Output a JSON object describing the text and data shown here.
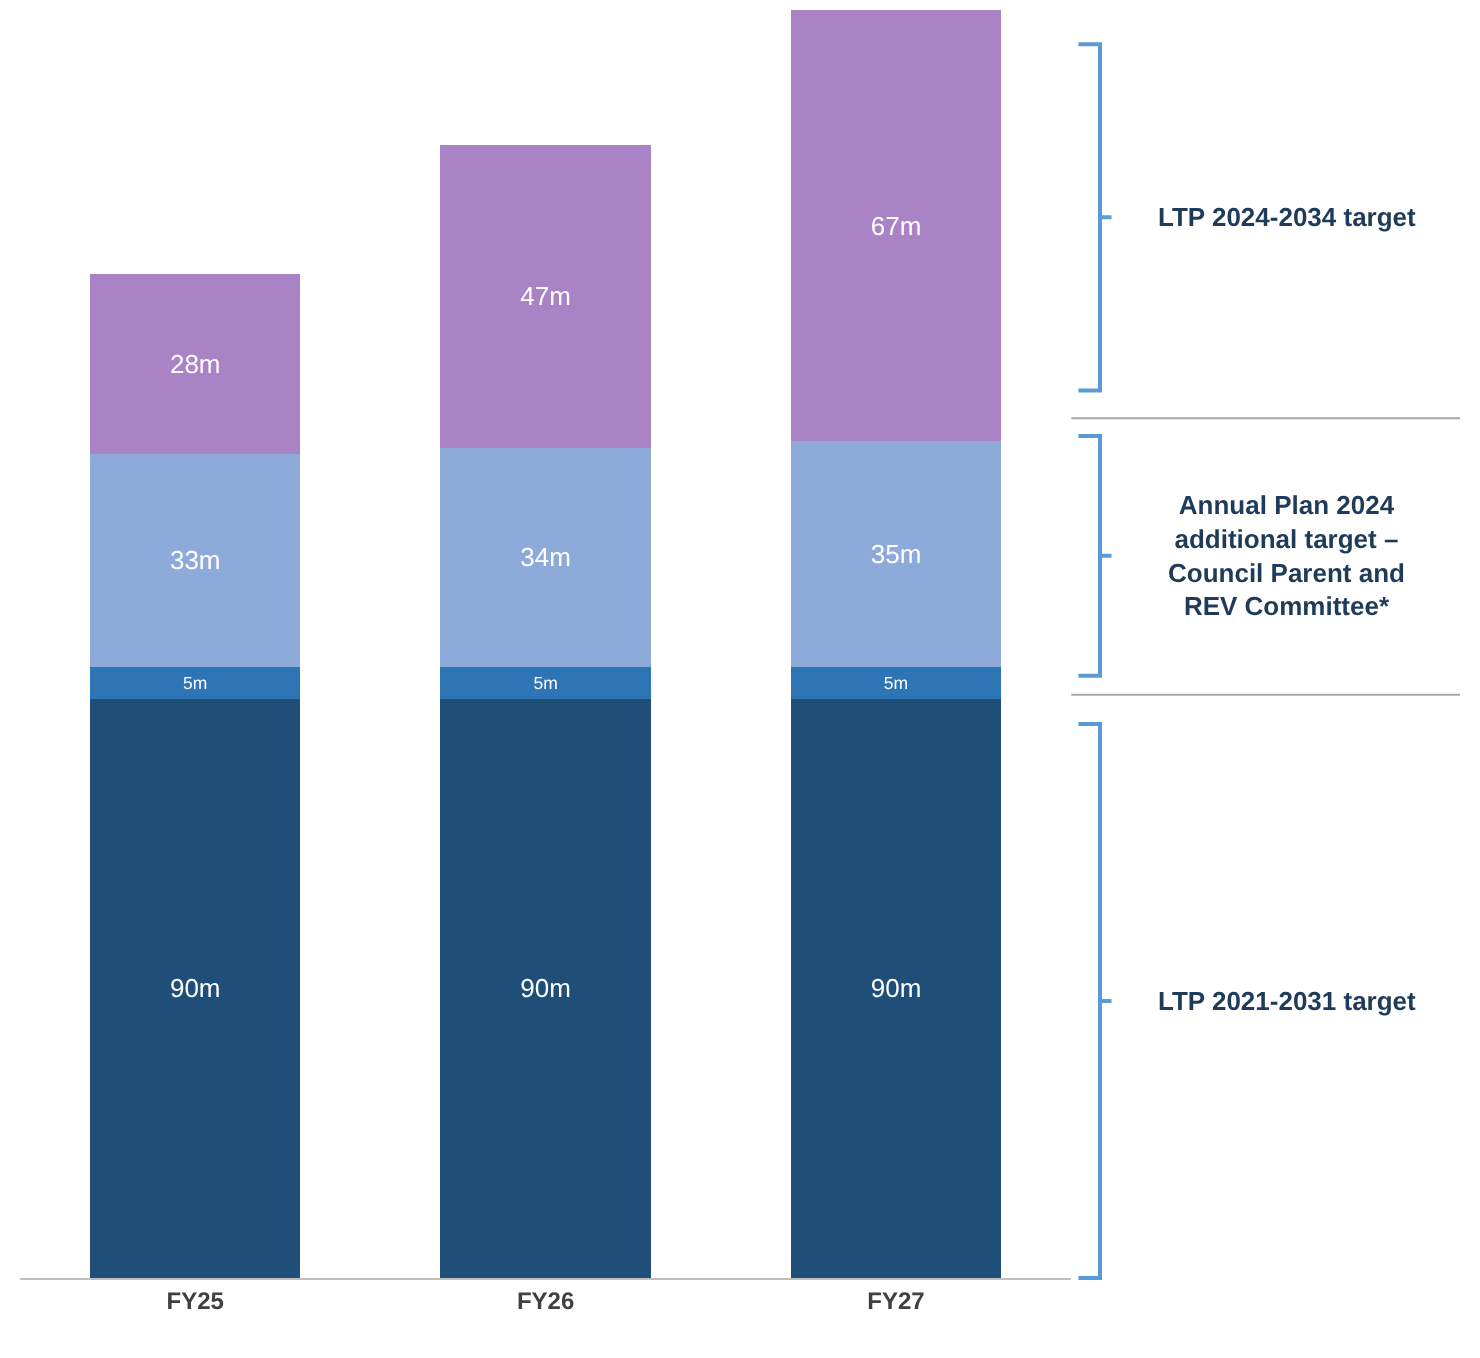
{
  "chart_data": {
    "type": "bar",
    "stacked": true,
    "categories": [
      "FY25",
      "FY26",
      "FY27"
    ],
    "series": [
      {
        "color": "#1f4e79",
        "values": [
          90,
          90,
          90
        ],
        "value_labels": [
          "90m",
          "90m",
          "90m"
        ]
      },
      {
        "color": "#2e75b6",
        "values": [
          5,
          5,
          5
        ],
        "value_labels": [
          "5m",
          "5m",
          "5m"
        ]
      },
      {
        "color": "#8eaadb",
        "values": [
          33,
          34,
          35
        ],
        "value_labels": [
          "33m",
          "34m",
          "35m"
        ]
      },
      {
        "color": "#a983c6",
        "values": [
          28,
          47,
          67
        ],
        "value_labels": [
          "28m",
          "47m",
          "67m"
        ]
      }
    ],
    "annotations": [
      "LTP 2024-2034 target",
      "Annual Plan 2024 additional target – Council Parent and REV Committee*",
      "LTP 2021-2031 target"
    ]
  }
}
